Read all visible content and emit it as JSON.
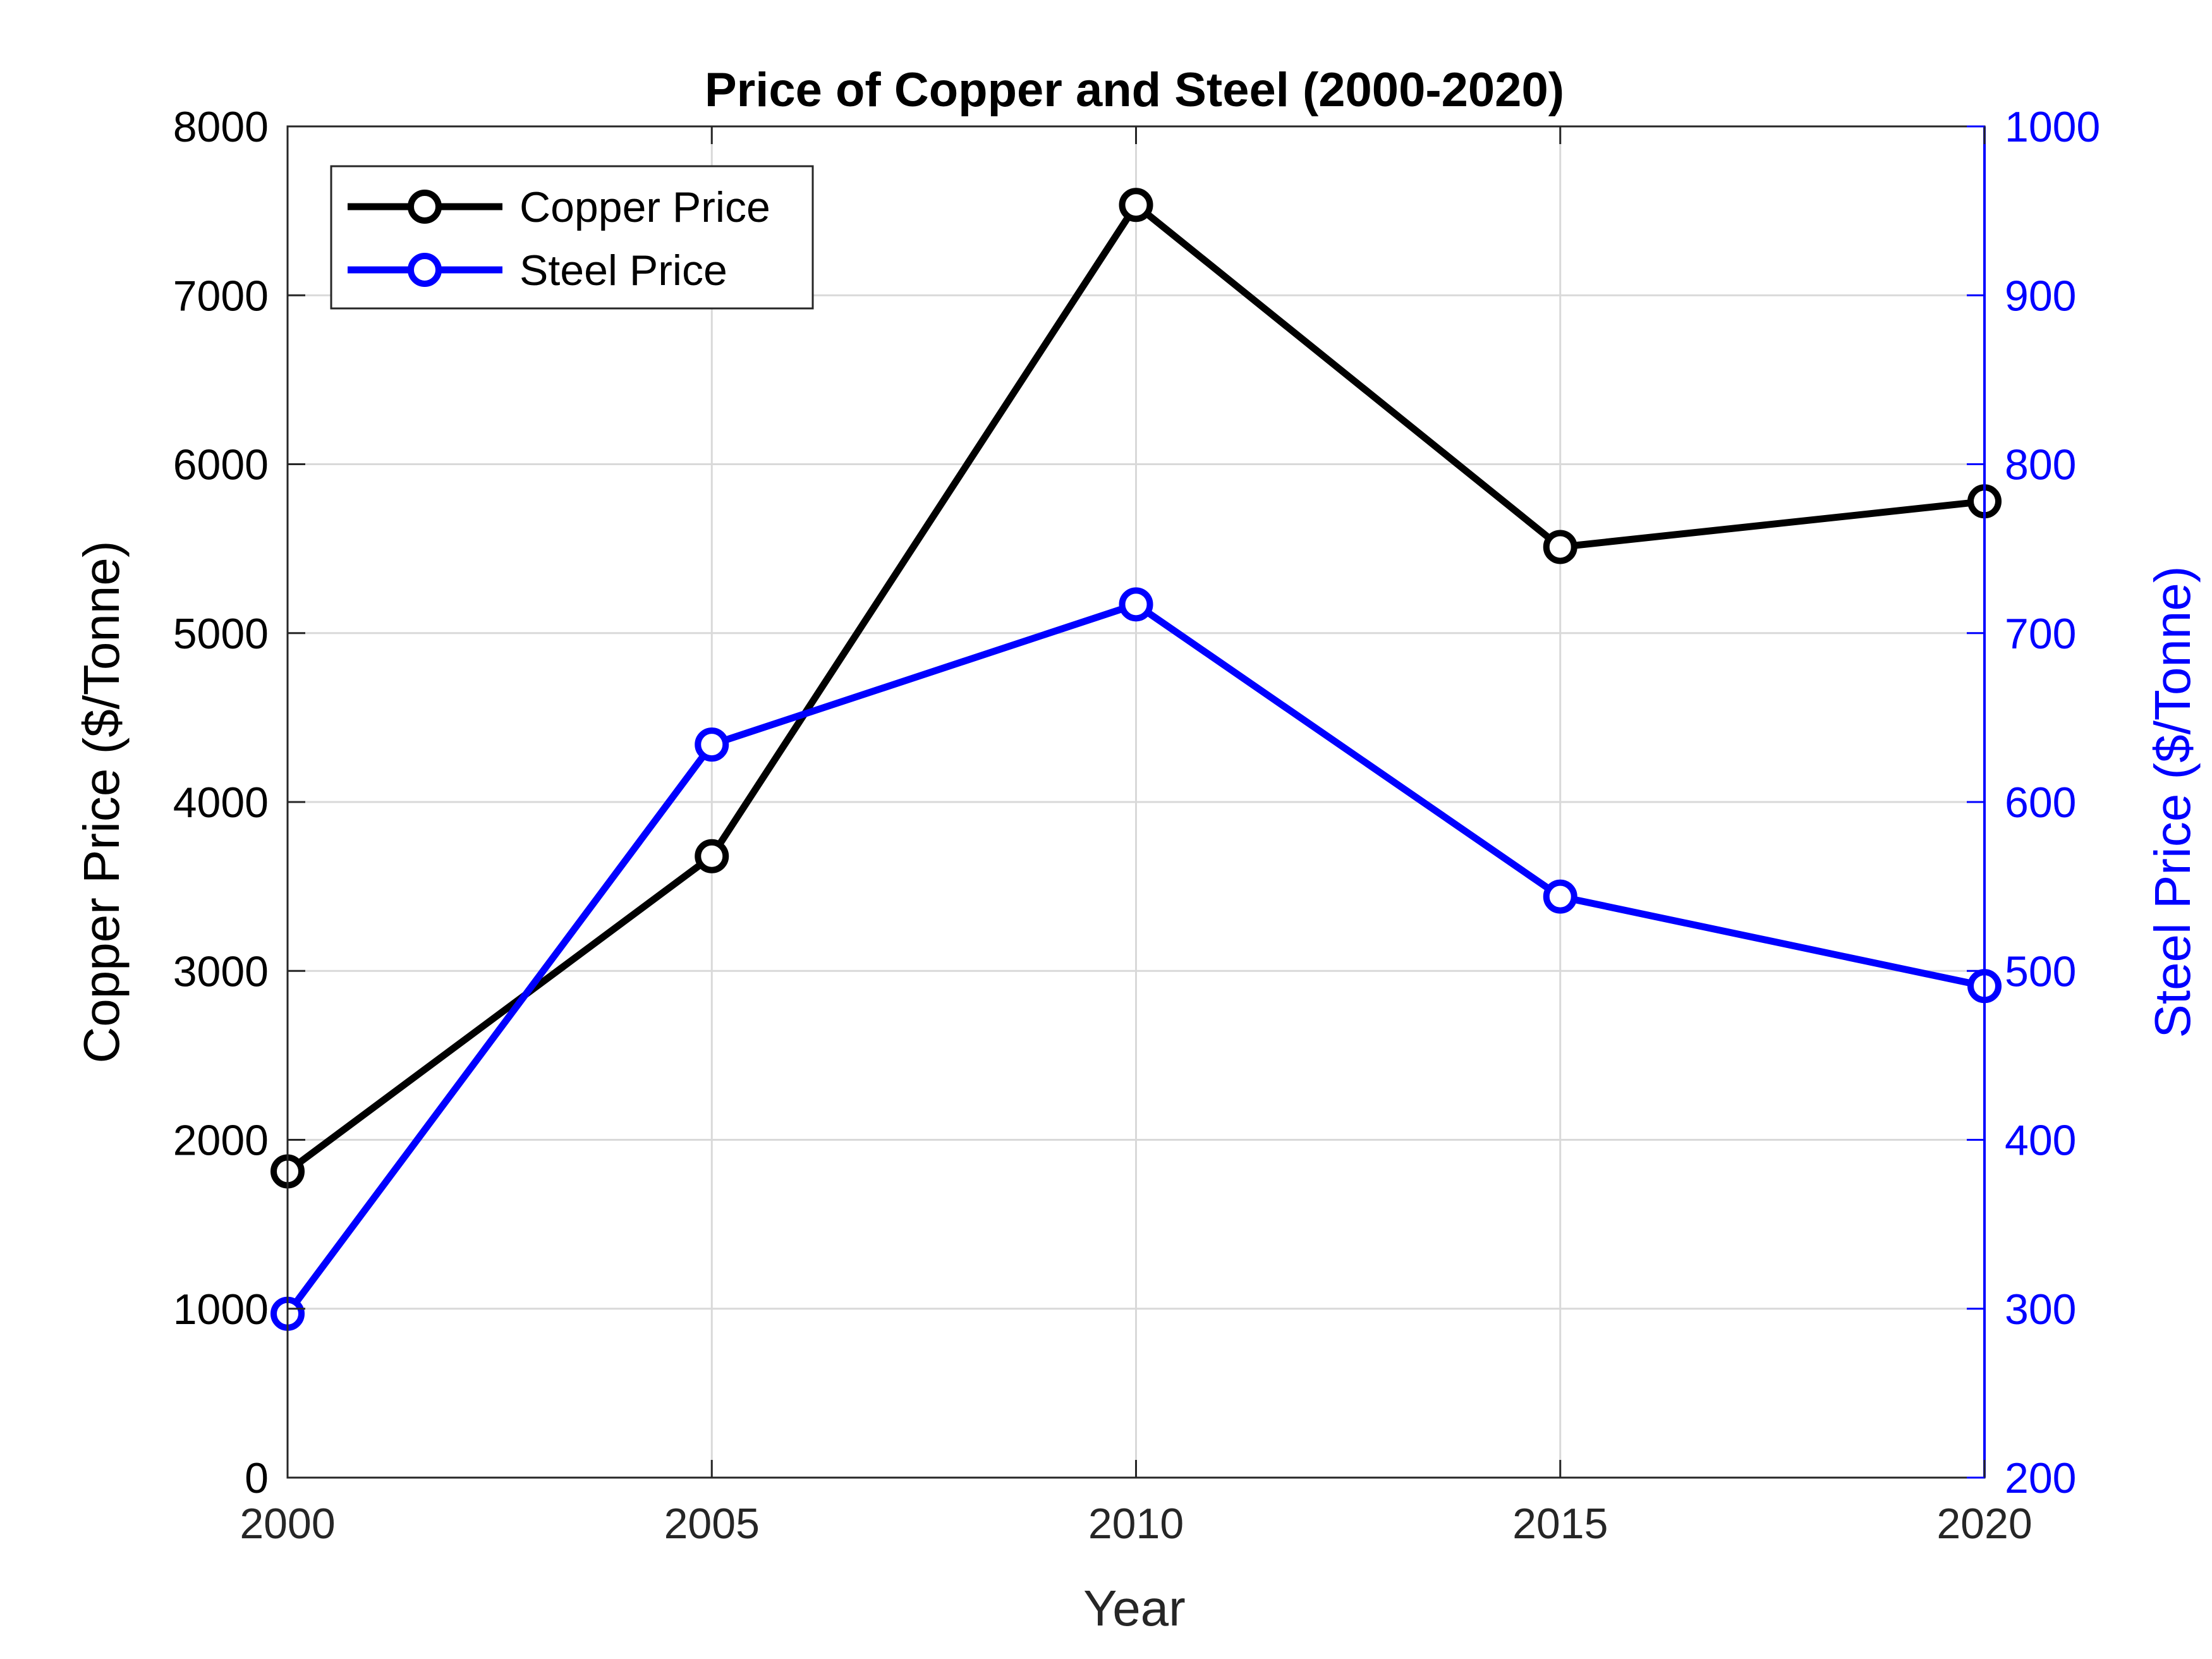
{
  "chart_data": {
    "type": "line",
    "title": "Price of Copper and Steel (2000-2020)",
    "xlabel": "Year",
    "ylabel_left": "Copper Price ($/Tonne)",
    "ylabel_right": "Steel Price ($/Tonne)",
    "x": [
      2000,
      2005,
      2010,
      2015,
      2020
    ],
    "x_ticks": [
      "2000",
      "2005",
      "2010",
      "2015",
      "2020"
    ],
    "xlim": [
      2000,
      2020
    ],
    "ylim_left": [
      0,
      8000
    ],
    "ylim_right": [
      200,
      1000
    ],
    "y_ticks_left": [
      "0",
      "1000",
      "2000",
      "3000",
      "4000",
      "5000",
      "6000",
      "7000",
      "8000"
    ],
    "y_ticks_right": [
      "200",
      "300",
      "400",
      "500",
      "600",
      "700",
      "800",
      "900",
      "1000"
    ],
    "grid": true,
    "legend_position": "top-left",
    "series": [
      {
        "name": "Copper Price",
        "axis": "left",
        "color": "#000000",
        "values": [
          1813,
          3679,
          7535,
          5510,
          5780
        ]
      },
      {
        "name": "Steel Price",
        "axis": "right",
        "color": "#0000ff",
        "values": [
          297,
          634,
          717,
          544,
          491
        ]
      }
    ]
  }
}
